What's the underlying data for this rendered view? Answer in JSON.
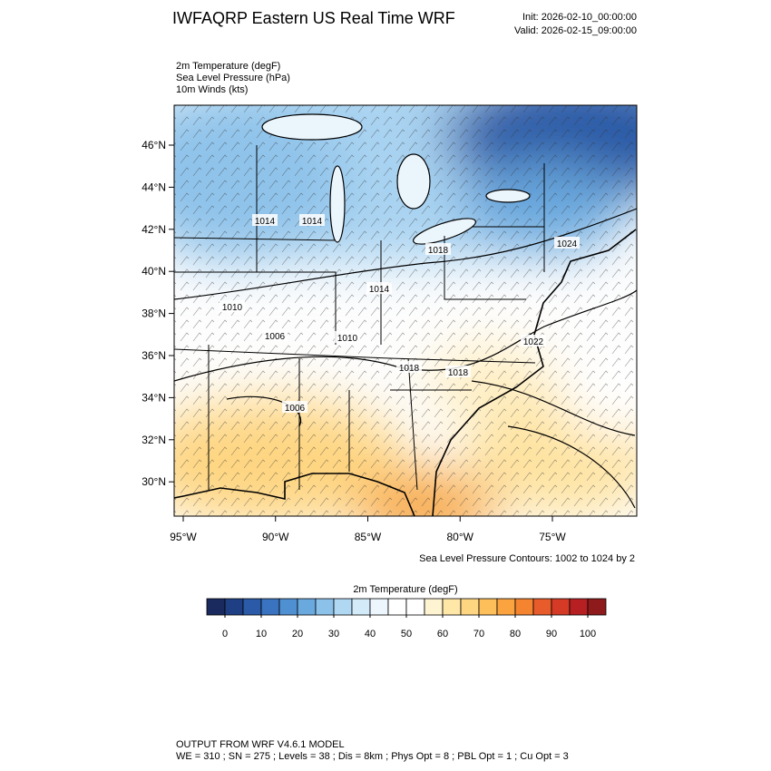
{
  "header": {
    "title": "IWFAQRP Eastern US Real Time WRF",
    "init": "Init: 2026-02-10_00:00:00",
    "valid": "Valid: 2026-02-15_09:00:00"
  },
  "fields": [
    "2m Temperature   (degF)",
    "Sea Level Pressure   (hPa)",
    "10m Winds   (kts)"
  ],
  "map": {
    "lat_ticks": [
      {
        "value": 46,
        "label": "46°N"
      },
      {
        "value": 44,
        "label": "44°N"
      },
      {
        "value": 42,
        "label": "42°N"
      },
      {
        "value": 40,
        "label": "40°N"
      },
      {
        "value": 38,
        "label": "38°N"
      },
      {
        "value": 36,
        "label": "36°N"
      },
      {
        "value": 34,
        "label": "34°N"
      },
      {
        "value": 32,
        "label": "32°N"
      },
      {
        "value": 30,
        "label": "30°N"
      }
    ],
    "lon_ticks": [
      {
        "value": -95,
        "label": "95°W"
      },
      {
        "value": -90,
        "label": "90°W"
      },
      {
        "value": -85,
        "label": "85°W"
      },
      {
        "value": -80,
        "label": "80°W"
      },
      {
        "value": -75,
        "label": "75°W"
      }
    ],
    "contour_labels": [
      "1014",
      "1014",
      "1018",
      "1024",
      "1010",
      "1014",
      "1006",
      "1010",
      "1022",
      "1018",
      "1018",
      "1006"
    ],
    "contour_note": "Sea Level Pressure Contours: 1002 to 1024 by 2"
  },
  "colorbar": {
    "title": "2m Temperature  (degF)",
    "ticks": [
      0,
      10,
      20,
      30,
      40,
      50,
      60,
      70,
      80,
      90,
      100
    ],
    "colors": [
      "#1a2a5e",
      "#1f3f85",
      "#2a5aa8",
      "#3a74c0",
      "#4f90d2",
      "#6aa9de",
      "#8cc2ea",
      "#b0d8f3",
      "#d3ebf9",
      "#ecf6fc",
      "#ffffff",
      "#ffffff",
      "#fff4d1",
      "#ffe7a8",
      "#fed682",
      "#fdbf5a",
      "#fba43f",
      "#f4842f",
      "#e75c2a",
      "#d43a26",
      "#b72023",
      "#8e1a1c"
    ]
  },
  "footer": {
    "line1": "OUTPUT FROM WRF V4.6.1 MODEL",
    "line2": "WE = 310 ; SN = 275 ; Levels = 38 ; Dis = 8km ; Phys Opt = 8 ; PBL Opt = 1 ; Cu Opt = 3"
  }
}
